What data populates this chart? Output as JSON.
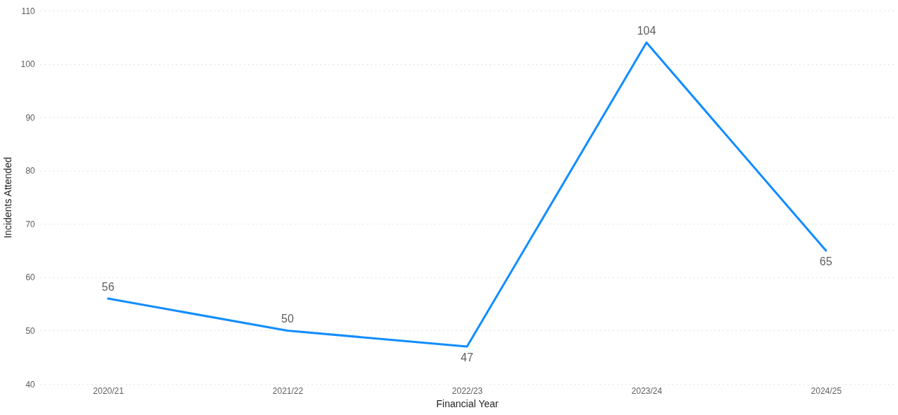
{
  "chart_data": {
    "type": "line",
    "categories": [
      "2020/21",
      "2021/22",
      "2022/23",
      "2023/24",
      "2024/25"
    ],
    "series": [
      {
        "color": "#118dff",
        "values": [
          56,
          50,
          47,
          104,
          65
        ]
      }
    ],
    "xlabel": "Financial Year",
    "ylabel": "Incidents Attended",
    "ylim": [
      40,
      110
    ],
    "yticks": [
      40,
      50,
      60,
      70,
      80,
      90,
      100,
      110
    ],
    "grid": "y",
    "data_labels": true
  }
}
